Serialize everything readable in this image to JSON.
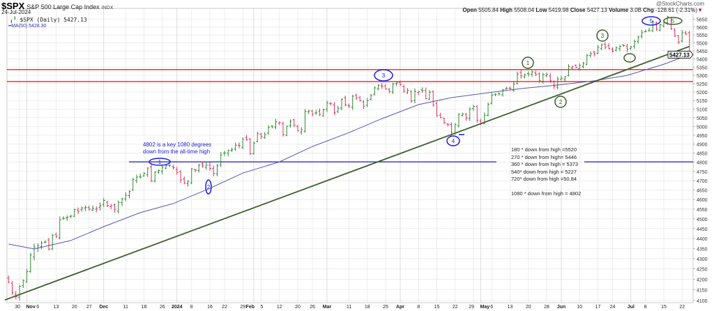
{
  "header": {
    "symbol": "$SPX",
    "name": "S&P 500 Large Cap Index",
    "exchange": "INDX",
    "date": "24-Jul-2024",
    "brand": "@StockCharts.com",
    "quote": {
      "open_label": "Open",
      "open": "5505.84",
      "high_label": "High",
      "high": "5508.04",
      "low_label": "Low",
      "low": "5419.98",
      "close_label": "Close",
      "close": "5427.13",
      "volume_label": "Volume",
      "volume": "3.0B",
      "chg_label": "Chg",
      "chg": "-128.61 (-2.31%)",
      "chg_arrow": "▼"
    }
  },
  "legend": {
    "price": "$SPX (Daily) 5427.13",
    "ma": "MA(50) 5428.30"
  },
  "colors": {
    "up": "#2f8a2f",
    "down": "#e0305f",
    "ma": "#5555bb",
    "trendline": "#3a5f2a",
    "resistance": "#ff1a1a",
    "key_level": "#1a1acc",
    "annotation_blue": "#1a1aee",
    "annotation_green": "#3a5f2a"
  },
  "annotations": {
    "key_level_note": [
      "4802 is a key 1080 degrees",
      "down from the all-time high"
    ],
    "degree_notes": [
      "180 * down from high =5520",
      "270 * down from high= 5446",
      "360 * down from high = 5373",
      "540* down from high = 5227",
      "720* down from high =50.84",
      "",
      "1080 * down from high = 4802"
    ],
    "blue_wave_labels": [
      "1",
      "2",
      "3",
      "4",
      "5"
    ],
    "green_wave_labels": [
      "1",
      "2",
      "3",
      "",
      "5"
    ]
  },
  "chart_data": {
    "type": "ohlc",
    "title": "$SPX (Daily)",
    "yscale": "log",
    "ylim": [
      4100,
      5650
    ],
    "ytick_step": 50,
    "last_price_label": "5427.13",
    "closes": [
      4186,
      4137,
      4117,
      4166,
      4194,
      4237,
      4318,
      4358,
      4365,
      4378,
      4383,
      4347,
      4415,
      4411,
      4495,
      4502,
      4508,
      4514,
      4547,
      4538,
      4556,
      4559,
      4550,
      4554,
      4550,
      4568,
      4595,
      4569,
      4567,
      4549,
      4585,
      4604,
      4622,
      4643,
      4707,
      4719,
      4719,
      4740,
      4768,
      4698,
      4746,
      4755,
      4774,
      4781,
      4783,
      4770,
      4743,
      4705,
      4688,
      4697,
      4764,
      4757,
      4783,
      4780,
      4784,
      4766,
      4739,
      4780,
      4840,
      4851,
      4865,
      4868,
      4894,
      4891,
      4928,
      4925,
      4846,
      4906,
      4959,
      4943,
      4954,
      4995,
      4998,
      5027,
      5022,
      4953,
      5001,
      5030,
      5006,
      4976,
      4982,
      5088,
      5089,
      5070,
      5078,
      5069,
      5096,
      5137,
      5131,
      5079,
      5105,
      5157,
      5124,
      5118,
      5175,
      5165,
      5150,
      5117,
      5149,
      5179,
      5225,
      5241,
      5234,
      5218,
      5204,
      5248,
      5254,
      5243,
      5205,
      5211,
      5147,
      5204,
      5202,
      5209,
      5161,
      5199,
      5123,
      5061,
      5051,
      5022,
      5011,
      4967,
      5010,
      5070,
      5071,
      5048,
      5100,
      5116,
      5036,
      5018,
      5064,
      5128,
      5181,
      5187,
      5188,
      5214,
      5223,
      5221,
      5247,
      5308,
      5297,
      5303,
      5308,
      5321,
      5307,
      5268,
      5305,
      5306,
      5267,
      5235,
      5278,
      5283,
      5291,
      5354,
      5352,
      5347,
      5361,
      5375,
      5421,
      5433,
      5431,
      5473,
      5487,
      5473,
      5465,
      5448,
      5469,
      5478,
      5483,
      5460,
      5475,
      5509,
      5537,
      5567,
      5572,
      5577,
      5633,
      5585,
      5615,
      5631,
      5667,
      5589,
      5545,
      5505,
      5564,
      5556,
      5427
    ],
    "ma50": [
      [
        0,
        4372
      ],
      [
        7,
        4348
      ],
      [
        17,
        4390
      ],
      [
        26,
        4460
      ],
      [
        36,
        4532
      ],
      [
        45,
        4579
      ],
      [
        55,
        4659
      ],
      [
        64,
        4741
      ],
      [
        74,
        4802
      ],
      [
        83,
        4887
      ],
      [
        93,
        4965
      ],
      [
        102,
        5045
      ],
      [
        112,
        5126
      ],
      [
        121,
        5167
      ],
      [
        131,
        5196
      ],
      [
        140,
        5221
      ],
      [
        150,
        5242
      ],
      [
        160,
        5267
      ],
      [
        169,
        5300
      ],
      [
        179,
        5368
      ],
      [
        186,
        5428
      ]
    ],
    "trendline": [
      [
        -1,
        4102
      ],
      [
        186,
        5478
      ]
    ],
    "resistance_levels": [
      5335,
      5263
    ],
    "key_level": 4802,
    "xticks": [
      {
        "i": 3,
        "label": "30",
        "major": false
      },
      {
        "i": 5,
        "label": "Nov",
        "major": true
      },
      {
        "i": 8,
        "label": "6",
        "major": false
      },
      {
        "i": 13,
        "label": "13",
        "major": false
      },
      {
        "i": 18,
        "label": "20",
        "major": false
      },
      {
        "i": 22,
        "label": "27",
        "major": false
      },
      {
        "i": 26,
        "label": "Dec",
        "major": true
      },
      {
        "i": 32,
        "label": "11",
        "major": false
      },
      {
        "i": 37,
        "label": "18",
        "major": false
      },
      {
        "i": 42,
        "label": "26",
        "major": false
      },
      {
        "i": 46,
        "label": "2024",
        "major": true
      },
      {
        "i": 50,
        "label": "8",
        "major": false
      },
      {
        "i": 55,
        "label": "16",
        "major": false
      },
      {
        "i": 59,
        "label": "22",
        "major": false
      },
      {
        "i": 64,
        "label": "29",
        "major": false
      },
      {
        "i": 67,
        "label": "Feb",
        "major": true
      },
      {
        "i": 69,
        "label": "5",
        "major": false
      },
      {
        "i": 74,
        "label": "12",
        "major": false
      },
      {
        "i": 79,
        "label": "20",
        "major": false
      },
      {
        "i": 83,
        "label": "26",
        "major": false
      },
      {
        "i": 87,
        "label": "Mar",
        "major": true
      },
      {
        "i": 93,
        "label": "11",
        "major": false
      },
      {
        "i": 98,
        "label": "18",
        "major": false
      },
      {
        "i": 103,
        "label": "25",
        "major": false
      },
      {
        "i": 107,
        "label": "Apr",
        "major": true
      },
      {
        "i": 112,
        "label": "8",
        "major": false
      },
      {
        "i": 117,
        "label": "15",
        "major": false
      },
      {
        "i": 122,
        "label": "22",
        "major": false
      },
      {
        "i": 127,
        "label": "29",
        "major": false
      },
      {
        "i": 129,
        "label": "May",
        "major": true
      },
      {
        "i": 132,
        "label": "6",
        "major": false
      },
      {
        "i": 137,
        "label": "13",
        "major": false
      },
      {
        "i": 142,
        "label": "20",
        "major": false
      },
      {
        "i": 147,
        "label": "28",
        "major": false
      },
      {
        "i": 151,
        "label": "Jun",
        "major": true
      },
      {
        "i": 156,
        "label": "10",
        "major": false
      },
      {
        "i": 161,
        "label": "17",
        "major": false
      },
      {
        "i": 165,
        "label": "24",
        "major": false
      },
      {
        "i": 170,
        "label": "Jul",
        "major": true
      },
      {
        "i": 174,
        "label": "8",
        "major": false
      },
      {
        "i": 179,
        "label": "15",
        "major": false
      },
      {
        "i": 184,
        "label": "22",
        "major": false
      }
    ]
  }
}
